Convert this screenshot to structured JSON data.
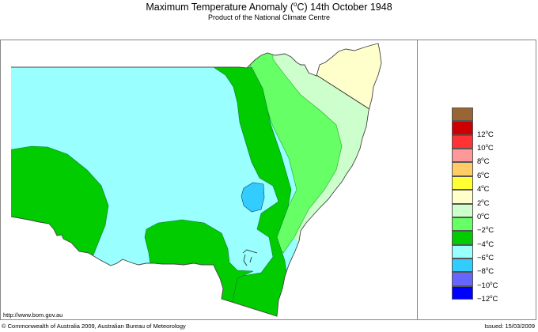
{
  "header": {
    "title_prefix": "Maximum Temperature Anomaly (",
    "title_unit_sup": "o",
    "title_suffix": "C)  14th October 1948",
    "subtitle": "Product of the National Climate Centre"
  },
  "legend": {
    "items": [
      {
        "color": "#996633",
        "label": ""
      },
      {
        "color": "#cc0000",
        "label": "12",
        "unit": "C"
      },
      {
        "color": "#ff3333",
        "label": "10",
        "unit": "C"
      },
      {
        "color": "#ff9999",
        "label": "8",
        "unit": "C"
      },
      {
        "color": "#ffcc66",
        "label": "6",
        "unit": "C"
      },
      {
        "color": "#ffff33",
        "label": "4",
        "unit": "C"
      },
      {
        "color": "#ffffcc",
        "label": "2",
        "unit": "C"
      },
      {
        "color": "#ccffcc",
        "label": "0",
        "unit": "C"
      },
      {
        "color": "#66ff66",
        "label": "-2",
        "unit": "C"
      },
      {
        "color": "#00cc00",
        "label": "-4",
        "unit": "C"
      },
      {
        "color": "#99ffff",
        "label": "-6",
        "unit": "C"
      },
      {
        "color": "#33ccff",
        "label": "-8",
        "unit": "C"
      },
      {
        "color": "#6666ff",
        "label": "-10",
        "unit": "C"
      },
      {
        "color": "#0000ff",
        "label": "-12",
        "unit": "C"
      }
    ]
  },
  "map": {
    "region": "New South Wales",
    "colors": {
      "anom_-6_to_-4": "#00cc00",
      "anom_-8_to_-6": "#99ffff",
      "anom_-10_to_-8": "#33ccff",
      "anom_-4_to_-2": "#66ff66",
      "anom_-2_to_0": "#ccffcc",
      "anom_0_to_2": "#ffffcc"
    }
  },
  "footer": {
    "url": "http://www.bom.gov.au",
    "copyright": "© Commonwealth of Australia 2009, Australian Bureau of Meteorology",
    "issued": "Issued: 15/03/2009"
  }
}
